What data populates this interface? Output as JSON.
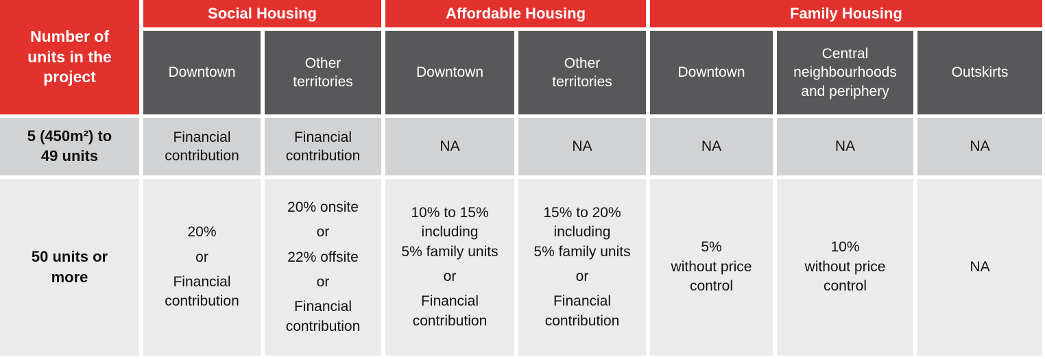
{
  "corner_header": [
    "Number of",
    "units in the",
    "project"
  ],
  "groups": [
    "Social Housing",
    "Affordable Housing",
    "Family Housing"
  ],
  "subheaders": [
    [
      "Downtown"
    ],
    [
      "Other",
      "territories"
    ],
    [
      "Downtown"
    ],
    [
      "Other",
      "territories"
    ],
    [
      "Downtown"
    ],
    [
      "Central",
      "neighbourhoods",
      "and periphery"
    ],
    [
      "Outskirts"
    ]
  ],
  "rows": [
    {
      "label": [
        "5 (450m²) to",
        "49 units"
      ],
      "cells": [
        [
          "Financial",
          "contribution"
        ],
        [
          "Financial",
          "contribution"
        ],
        [
          "NA"
        ],
        [
          "NA"
        ],
        [
          "NA"
        ],
        [
          "NA"
        ],
        [
          "NA"
        ]
      ]
    },
    {
      "label": [
        "50 units or",
        "more"
      ],
      "cells": [
        [
          "20%",
          "or",
          "Financial",
          "contribution"
        ],
        [
          "20% onsite",
          "or",
          "22% offsite",
          "or",
          "Financial",
          "contribution"
        ],
        [
          "10% to 15%",
          "including",
          "5% family units",
          "or",
          "Financial",
          "contribution"
        ],
        [
          "15% to 20%",
          "including",
          "5% family units",
          "or",
          "Financial",
          "contribution"
        ],
        [
          "5%",
          "without price",
          "control"
        ],
        [
          "10%",
          "without price",
          "control"
        ],
        [
          "NA"
        ]
      ]
    }
  ],
  "colors": {
    "accent_red": "#e3312d",
    "header_gray": "#58585a",
    "row1": "#d1d2d4",
    "row2": "#ebebec"
  }
}
